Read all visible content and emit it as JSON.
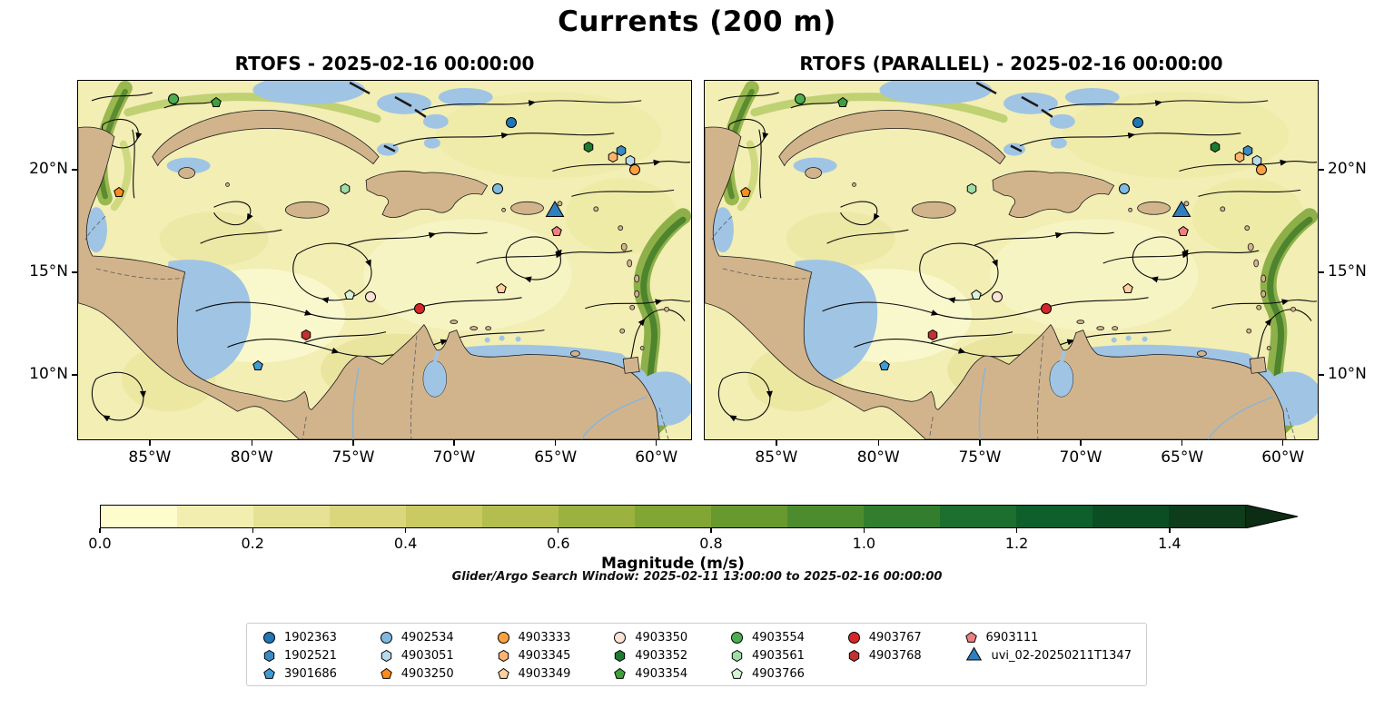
{
  "chart_data": {
    "type": "heatmap",
    "subtype": "geographic streamplot of ocean current magnitude with float/glider markers",
    "title": "Currents (200 m)",
    "panels": [
      {
        "model": "RTOFS",
        "title": "RTOFS - 2025-02-16 00:00:00"
      },
      {
        "model": "RTOFS (PARALLEL)",
        "title": "RTOFS (PARALLEL) - 2025-02-16 00:00:00"
      }
    ],
    "map_extent": {
      "lon_west": "88.6°W",
      "lon_east": "58.2°W",
      "lat_south": "6.8°N",
      "lat_north": "24.4°N"
    },
    "x_ticks": [
      {
        "label": "85°W",
        "pct": 11.8
      },
      {
        "label": "80°W",
        "pct": 28.4
      },
      {
        "label": "75°W",
        "pct": 44.9
      },
      {
        "label": "70°W",
        "pct": 61.3
      },
      {
        "label": "65°W",
        "pct": 77.8
      },
      {
        "label": "60°W",
        "pct": 94.2
      }
    ],
    "y_ticks": [
      {
        "label": "20°N",
        "pct": 24.9
      },
      {
        "label": "15°N",
        "pct": 53.4
      },
      {
        "label": "10°N",
        "pct": 81.9
      }
    ],
    "colorbar": {
      "label": "Magnitude (m/s)",
      "vmin": 0.0,
      "vmax": 1.5,
      "extend": "max",
      "ticks": [
        {
          "label": "0.0",
          "pct": 0
        },
        {
          "label": "0.2",
          "pct": 13.33
        },
        {
          "label": "0.4",
          "pct": 26.67
        },
        {
          "label": "0.6",
          "pct": 40
        },
        {
          "label": "0.8",
          "pct": 53.33
        },
        {
          "label": "1.0",
          "pct": 66.67
        },
        {
          "label": "1.2",
          "pct": 80
        },
        {
          "label": "1.4",
          "pct": 93.33
        }
      ],
      "segment_colors": [
        "#fefccd",
        "#f1eeb0",
        "#e5e295",
        "#d9d67c",
        "#c9ca62",
        "#b4be4e",
        "#9cb23e",
        "#82a633",
        "#68992f",
        "#4d8c2e",
        "#327e2e",
        "#1c6f2e",
        "#0e5f2b",
        "#0c4e24",
        "#0d3d1b"
      ],
      "arrow_color": "#0c2c13"
    },
    "annotation": "Glider/Argo Search Window: 2025-02-11 13:00:00 to 2025-02-16 00:00:00",
    "legend_columns": [
      [
        {
          "id": "1902363",
          "shape": "circle",
          "color": "#1f77b4"
        },
        {
          "id": "1902521",
          "shape": "hexagon",
          "color": "#3b8bc2"
        },
        {
          "id": "3901686",
          "shape": "pentagon",
          "color": "#3f9bd4"
        }
      ],
      [
        {
          "id": "4902534",
          "shape": "circle",
          "color": "#7fb9e0"
        },
        {
          "id": "4903051",
          "shape": "hexagon",
          "color": "#b9d9ec"
        },
        {
          "id": "4903250",
          "shape": "pentagon",
          "color": "#ff8c1a"
        }
      ],
      [
        {
          "id": "4903333",
          "shape": "circle",
          "color": "#ffa040"
        },
        {
          "id": "4903345",
          "shape": "hexagon",
          "color": "#ffb570"
        },
        {
          "id": "4903349",
          "shape": "pentagon",
          "color": "#ffd0a0"
        }
      ],
      [
        {
          "id": "4903350",
          "shape": "circle",
          "color": "#fbe4d5"
        },
        {
          "id": "4903352",
          "shape": "hexagon",
          "color": "#1e7a30"
        },
        {
          "id": "4903354",
          "shape": "pentagon",
          "color": "#3fa03a"
        }
      ],
      [
        {
          "id": "4903554",
          "shape": "circle",
          "color": "#4cae50"
        },
        {
          "id": "4903561",
          "shape": "hexagon",
          "color": "#9fdca8"
        },
        {
          "id": "4903766",
          "shape": "pentagon",
          "color": "#d8f3d8"
        }
      ],
      [
        {
          "id": "4903767",
          "shape": "circle",
          "color": "#d62728"
        },
        {
          "id": "4903768",
          "shape": "hexagon",
          "color": "#c23030"
        }
      ],
      [
        {
          "id": "6903111",
          "shape": "pentagon",
          "color": "#ef8080"
        },
        {
          "id": "uvi_02-20250211T1347",
          "shape": "triangle",
          "color": "#2f7fbf"
        }
      ]
    ],
    "map_markers": [
      {
        "id": "uvi_02-20250211T1347",
        "shape": "triangle",
        "color": "#2f7fbf",
        "x_pct": 77.8,
        "y_pct": 36.5,
        "lon": "65.0°W",
        "lat": "18.0°N"
      },
      {
        "id": "1902363",
        "shape": "circle",
        "color": "#1f77b4",
        "x_pct": 70.6,
        "y_pct": 11.6,
        "lon": "67.1°W",
        "lat": "22.4°N"
      },
      {
        "id": "4903554",
        "shape": "circle",
        "color": "#4cae50",
        "x_pct": 15.5,
        "y_pct": 5.0,
        "lon": "83.9°W",
        "lat": "23.5°N"
      },
      {
        "id": "4903354",
        "shape": "pentagon",
        "color": "#3fa03a",
        "x_pct": 22.5,
        "y_pct": 6.0,
        "lon": "81.8°W",
        "lat": "23.3°N"
      },
      {
        "id": "4903352",
        "shape": "hexagon",
        "color": "#1e7a30",
        "x_pct": 83.2,
        "y_pct": 18.4,
        "lon": "63.3°W",
        "lat": "21.2°N"
      },
      {
        "id": "4903345",
        "shape": "hexagon",
        "color": "#ffb570",
        "x_pct": 87.3,
        "y_pct": 21.2,
        "lon": "62.1°W",
        "lat": "20.7°N"
      },
      {
        "id": "1902521",
        "shape": "hexagon",
        "color": "#3b8bc2",
        "x_pct": 88.6,
        "y_pct": 19.4,
        "lon": "61.7°W",
        "lat": "21.0°N"
      },
      {
        "id": "4903051",
        "shape": "hexagon",
        "color": "#b9d9ec",
        "x_pct": 90.1,
        "y_pct": 22.2,
        "lon": "61.2°W",
        "lat": "20.5°N"
      },
      {
        "id": "4903333",
        "shape": "circle",
        "color": "#ffa040",
        "x_pct": 90.8,
        "y_pct": 24.7,
        "lon": "61.0°W",
        "lat": "20.1°N"
      },
      {
        "id": "4903250",
        "shape": "pentagon",
        "color": "#ff8c1a",
        "x_pct": 6.6,
        "y_pct": 31.2,
        "lon": "86.6°W",
        "lat": "18.9°N"
      },
      {
        "id": "4903561",
        "shape": "hexagon",
        "color": "#9fdca8",
        "x_pct": 43.6,
        "y_pct": 30.0,
        "lon": "75.3°W",
        "lat": "19.1°N"
      },
      {
        "id": "4902534",
        "shape": "circle",
        "color": "#7fb9e0",
        "x_pct": 68.4,
        "y_pct": 30.2,
        "lon": "67.8°W",
        "lat": "19.1°N"
      },
      {
        "id": "6903111",
        "shape": "pentagon",
        "color": "#ef8080",
        "x_pct": 78.1,
        "y_pct": 42.1,
        "lon": "64.9°W",
        "lat": "17.0°N"
      },
      {
        "id": "4903766",
        "shape": "pentagon",
        "color": "#d8f3d8",
        "x_pct": 44.3,
        "y_pct": 59.7,
        "lon": "75.1°W",
        "lat": "13.9°N"
      },
      {
        "id": "4903350",
        "shape": "circle",
        "color": "#fbe4d5",
        "x_pct": 47.7,
        "y_pct": 60.2,
        "lon": "74.1°W",
        "lat": "13.8°N"
      },
      {
        "id": "4903767",
        "shape": "circle",
        "color": "#d62728",
        "x_pct": 55.7,
        "y_pct": 63.5,
        "lon": "71.7°W",
        "lat": "13.2°N"
      },
      {
        "id": "4903349",
        "shape": "pentagon",
        "color": "#ffd0a0",
        "x_pct": 69.1,
        "y_pct": 57.9,
        "lon": "67.6°W",
        "lat": "14.2°N"
      },
      {
        "id": "4903768",
        "shape": "hexagon",
        "color": "#c23030",
        "x_pct": 37.2,
        "y_pct": 70.8,
        "lon": "77.3°W",
        "lat": "11.9°N"
      },
      {
        "id": "3901686",
        "shape": "pentagon",
        "color": "#3f9bd4",
        "x_pct": 29.4,
        "y_pct": 79.6,
        "lon": "79.7°W",
        "lat": "10.4°N"
      }
    ],
    "map_colors": {
      "land": "#d2b48c",
      "shallow_water": "#a0c4e4",
      "water_base": "#f2eeb4",
      "fast_current": "#55862c",
      "coastline": "#1a1a1a"
    }
  }
}
